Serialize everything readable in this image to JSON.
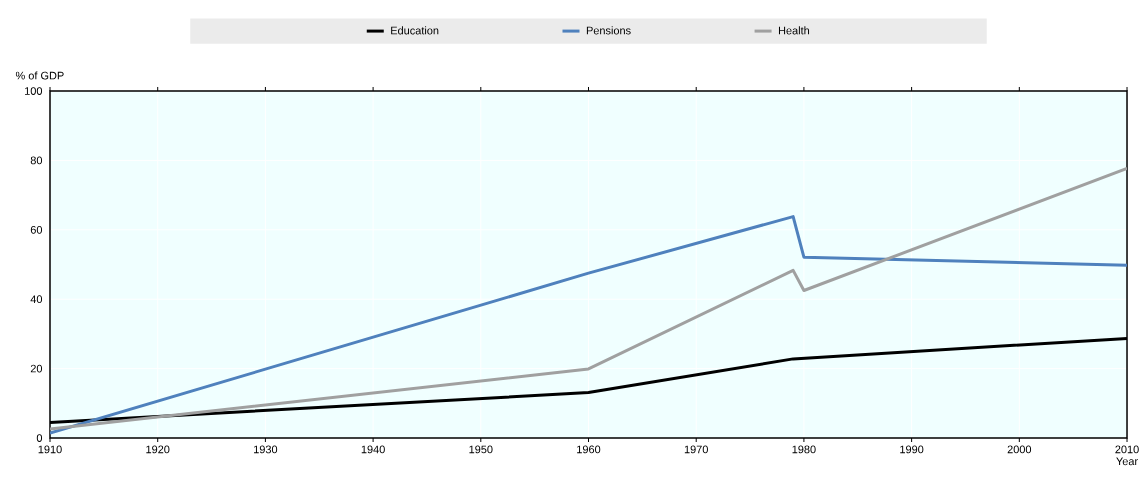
{
  "chart_data": {
    "type": "line",
    "xlabel": "Year",
    "ylabel": "% of GDP",
    "xlim": [
      1910,
      2010
    ],
    "xticks": [
      1910,
      1920,
      1930,
      1940,
      1950,
      1960,
      1970,
      1980,
      1990,
      2000,
      2010
    ],
    "ylim": [
      0,
      100
    ],
    "yticks": [
      0,
      20,
      40,
      60,
      80,
      100
    ],
    "grid": true,
    "legend": "top",
    "marker": "none",
    "line_style": "solid",
    "series": [
      {
        "name": "Education",
        "color": "#000000",
        "x": [
          1910,
          1960,
          1979,
          2010
        ],
        "values": [
          4.5,
          13.1,
          22.8,
          28.7
        ]
      },
      {
        "name": "Pensions",
        "color": "#4f81bd",
        "x": [
          1910,
          1960,
          1979,
          1980,
          2010
        ],
        "values": [
          1.4,
          47.5,
          63.8,
          52.1,
          49.8
        ]
      },
      {
        "name": "Health",
        "color": "#a0a0a0",
        "x": [
          1910,
          1960,
          1979,
          1980,
          2010
        ],
        "values": [
          2.6,
          19.9,
          48.3,
          42.5,
          77.7
        ]
      }
    ]
  }
}
